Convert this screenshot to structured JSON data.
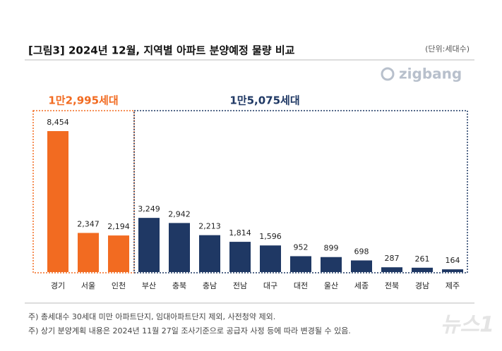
{
  "chart_data": {
    "type": "bar",
    "title": "[그림3] 2024년 12월, 지역별 아파트 분양예정 물량 비교",
    "unit": "(단위:세대수)",
    "logo": "zigbang",
    "annotations": [
      "1만2,995세대",
      "1만5,075세대"
    ],
    "categories": [
      "경기",
      "서울",
      "인천",
      "부산",
      "충북",
      "충남",
      "전남",
      "대구",
      "대전",
      "울산",
      "세종",
      "전북",
      "경남",
      "제주"
    ],
    "values": [
      8454,
      2347,
      2194,
      3249,
      2942,
      2213,
      1814,
      1596,
      952,
      899,
      698,
      287,
      261,
      164
    ],
    "value_labels": [
      "8,454",
      "2,347",
      "2,194",
      "3,249",
      "2,942",
      "2,213",
      "1,814",
      "1,596",
      "952",
      "899",
      "698",
      "287",
      "261",
      "164"
    ],
    "colors": [
      "#f26b21",
      "#f26b21",
      "#f26b21",
      "#1f3864",
      "#1f3864",
      "#1f3864",
      "#1f3864",
      "#1f3864",
      "#1f3864",
      "#1f3864",
      "#1f3864",
      "#1f3864",
      "#1f3864",
      "#1f3864"
    ],
    "notes": [
      "주) 총세대수 30세대 미만 아파트단지, 임대아파트단지 제외, 사전청약 제외.",
      "주) 상기 분양계획 내용은 2024년 11월 27일 조사기준으로 공급자 사정 등에 따라 변경될 수 있음."
    ],
    "watermark": "뉴스1"
  }
}
